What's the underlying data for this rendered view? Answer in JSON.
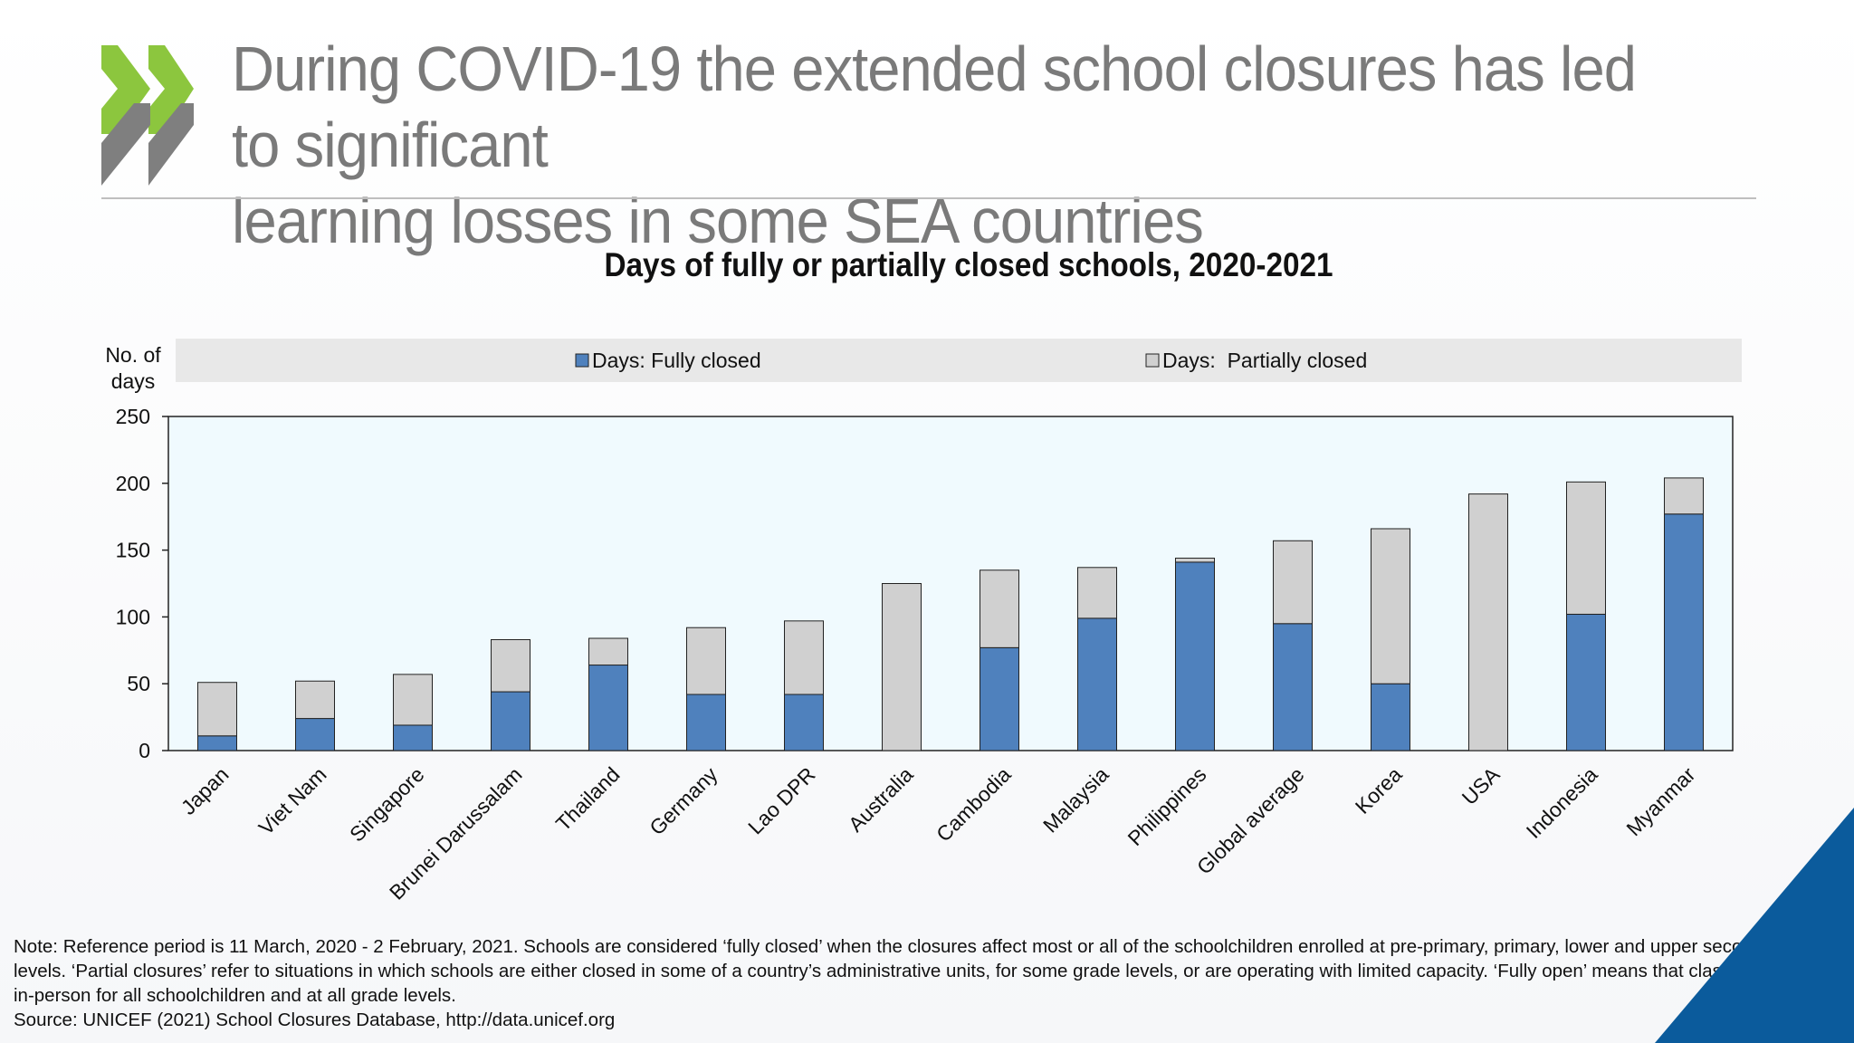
{
  "slide": {
    "title_line1": "During COVID-19 the extended school closures has led to significant",
    "title_line2": "learning losses in some SEA countries",
    "logo_icon": "double-chevron-logo-icon",
    "corner_icon": "blue-triangle-icon"
  },
  "colors": {
    "title_gray": "#7a7a7a",
    "logo_green": "#8cc63e",
    "logo_gray": "#7f7f7f",
    "fully_closed": "#4f81bd",
    "partially_closed": "#d0d0d0",
    "plot_bg": "#f0fafe",
    "legend_bg": "#e8e8e8",
    "corner_blue": "#0b5b9c"
  },
  "chart_data": {
    "type": "bar",
    "stacked": true,
    "title": "Days of fully or partially closed schools, 2020-2021",
    "ylabel_line1": "No. of",
    "ylabel_line2": "days",
    "ylim": [
      0,
      250
    ],
    "yticks": [
      0,
      50,
      100,
      150,
      200,
      250
    ],
    "grid": false,
    "legend_position": "top",
    "categories": [
      "Japan",
      "Viet Nam",
      "Singapore",
      "Brunei Darussalam",
      "Thailand",
      "Germany",
      "Lao DPR",
      "Australia",
      "Cambodia",
      "Malaysia",
      "Philippines",
      "Global average",
      "Korea",
      "USA",
      "Indonesia",
      "Myanmar"
    ],
    "series": [
      {
        "name": "Days: Fully closed",
        "values": [
          11,
          24,
          19,
          44,
          64,
          42,
          42,
          0,
          77,
          99,
          141,
          95,
          50,
          0,
          102,
          177
        ]
      },
      {
        "name": "Days:  Partially closed",
        "values": [
          40,
          28,
          38,
          39,
          20,
          50,
          55,
          125,
          58,
          38,
          3,
          62,
          116,
          192,
          99,
          27
        ]
      }
    ]
  },
  "notes": {
    "line1": "Note: Reference period is 11 March, 2020 - 2 February, 2021. Schools are considered ‘fully closed’ when the closures affect most or all of the schoolchildren enrolled at pre-primary, primary, lower and upper secondary",
    "line2": "levels. ‘Partial closures’ refer to situations in which schools are either closed in some of a country’s administrative units, for some grade levels, or are operating with limited capacity. ‘Fully open’ means that classes are held",
    "line3": "in-person for all schoolchildren and at all grade levels.",
    "source": "Source: UNICEF (2021) School Closures Database, http://data.unicef.org"
  }
}
